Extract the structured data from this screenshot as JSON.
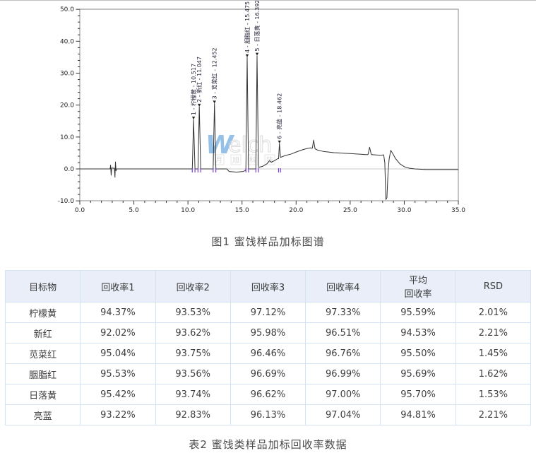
{
  "figure": {
    "caption": "图1 蜜饯样品加标图谱"
  },
  "watermark": {
    "brand_w": "W",
    "brand_rest": "elch",
    "subtext_chars": [
      "月",
      "旭",
      "科",
      "技"
    ]
  },
  "chart_data": {
    "type": "line",
    "title": "",
    "xlabel": "",
    "ylabel": "",
    "xlim": [
      0,
      35
    ],
    "ylim": [
      -10,
      50
    ],
    "x_ticks": [
      0,
      5,
      10,
      15,
      20,
      25,
      30,
      35
    ],
    "x_tick_labels": [
      "0.0",
      "5.0",
      "10.0",
      "15.0",
      "20.0",
      "25.0",
      "30.0",
      "35.0"
    ],
    "y_ticks": [
      50,
      40,
      30,
      20,
      10,
      0,
      -10
    ],
    "y_tick_labels": [
      "50.0",
      "40.0",
      "30.0",
      "20.0",
      "10.0",
      "0.0",
      "-10.0"
    ],
    "grid": "zero-line-only",
    "trace_color": "#333333",
    "marker_color": "#7a3fd4",
    "peaks": [
      {
        "label": "1 - 柠檬黄 - 10.517",
        "time": 10.517,
        "height": 15.5
      },
      {
        "label": "2 - 新红 - 11.047",
        "time": 11.047,
        "height": 19.5
      },
      {
        "label": "3 - 苋菜红 - 12.452",
        "time": 12.452,
        "height": 20.5
      },
      {
        "label": "4 - 胭脂红 - 15.475",
        "time": 15.475,
        "height": 35.0
      },
      {
        "label": "5 - 日落黄 - 16.392",
        "time": 16.392,
        "height": 35.5
      },
      {
        "label": "6 - 亮蓝 - 18.462",
        "time": 18.462,
        "height": 8.0
      }
    ],
    "integration_markers": [
      10.4,
      10.65,
      10.93,
      11.18,
      12.33,
      12.58,
      15.36,
      15.6,
      16.28,
      16.52,
      18.38,
      18.56
    ],
    "trace": [
      [
        0,
        0
      ],
      [
        1,
        0
      ],
      [
        2,
        0
      ],
      [
        2.8,
        0
      ],
      [
        2.85,
        1.2
      ],
      [
        2.9,
        -2.0
      ],
      [
        2.95,
        0.3
      ],
      [
        3.2,
        0.2
      ],
      [
        3.25,
        -2.6
      ],
      [
        3.3,
        2.2
      ],
      [
        3.35,
        -0.6
      ],
      [
        3.4,
        0
      ],
      [
        4,
        0
      ],
      [
        5,
        0
      ],
      [
        6,
        0
      ],
      [
        7,
        0
      ],
      [
        8,
        0
      ],
      [
        9,
        0
      ],
      [
        10,
        0
      ],
      [
        10.3,
        0
      ],
      [
        10.4,
        0
      ],
      [
        10.517,
        15.5
      ],
      [
        10.65,
        0
      ],
      [
        10.8,
        0
      ],
      [
        10.93,
        0
      ],
      [
        11.047,
        19.5
      ],
      [
        11.18,
        0
      ],
      [
        11.5,
        0
      ],
      [
        12.0,
        0
      ],
      [
        12.33,
        0
      ],
      [
        12.452,
        20.5
      ],
      [
        12.58,
        0
      ],
      [
        13.0,
        0
      ],
      [
        13.6,
        0
      ],
      [
        13.8,
        -0.8
      ],
      [
        14.5,
        -1.0
      ],
      [
        15.1,
        -0.8
      ],
      [
        15.3,
        -0.5
      ],
      [
        15.36,
        0
      ],
      [
        15.475,
        35.0
      ],
      [
        15.6,
        0
      ],
      [
        16.0,
        0
      ],
      [
        16.28,
        0
      ],
      [
        16.392,
        35.5
      ],
      [
        16.52,
        0.5
      ],
      [
        16.9,
        0.8
      ],
      [
        17.3,
        1.6
      ],
      [
        17.55,
        2.6
      ],
      [
        17.7,
        2.1
      ],
      [
        18.0,
        2.6
      ],
      [
        18.3,
        3.2
      ],
      [
        18.38,
        3.2
      ],
      [
        18.462,
        8.0
      ],
      [
        18.56,
        3.6
      ],
      [
        19,
        4.2
      ],
      [
        19.5,
        4.6
      ],
      [
        20,
        5.3
      ],
      [
        20.5,
        5.9
      ],
      [
        21,
        6.4
      ],
      [
        21.3,
        6.6
      ],
      [
        21.5,
        6.5
      ],
      [
        21.62,
        9.0
      ],
      [
        21.75,
        6.3
      ],
      [
        22,
        5.9
      ],
      [
        22.5,
        5.5
      ],
      [
        23,
        5.3
      ],
      [
        23.5,
        5.1
      ],
      [
        24,
        5.0
      ],
      [
        24.5,
        4.9
      ],
      [
        25,
        4.8
      ],
      [
        25.5,
        4.7
      ],
      [
        26,
        4.6
      ],
      [
        26.4,
        4.5
      ],
      [
        26.65,
        4.5
      ],
      [
        26.8,
        6.8
      ],
      [
        26.95,
        4.5
      ],
      [
        27.3,
        4.4
      ],
      [
        27.8,
        4.3
      ],
      [
        28.1,
        4.4
      ],
      [
        28.2,
        2.0
      ],
      [
        28.3,
        -9.6
      ],
      [
        28.4,
        -9.0
      ],
      [
        28.5,
        -1.0
      ],
      [
        28.6,
        3.0
      ],
      [
        28.75,
        5.8
      ],
      [
        28.9,
        5.0
      ],
      [
        29.2,
        3.2
      ],
      [
        29.6,
        1.6
      ],
      [
        30,
        0.7
      ],
      [
        30.5,
        0.2
      ],
      [
        31,
        0
      ],
      [
        32,
        -0.2
      ],
      [
        33,
        -0.2
      ],
      [
        34,
        -0.2
      ],
      [
        35,
        -0.2
      ]
    ]
  },
  "table": {
    "caption": "表2 蜜饯类样品加标回收率数据",
    "headers": [
      "目标物",
      "回收率1",
      "回收率2",
      "回收率3",
      "回收率4",
      "平均\n回收率",
      "RSD"
    ],
    "rows": [
      [
        "柠檬黄",
        "94.37%",
        "93.53%",
        "97.12%",
        "97.33%",
        "95.59%",
        "2.01%"
      ],
      [
        "新红",
        "92.02%",
        "93.62%",
        "95.98%",
        "96.51%",
        "94.53%",
        "2.21%"
      ],
      [
        "苋菜红",
        "95.04%",
        "93.75%",
        "96.46%",
        "96.76%",
        "95.50%",
        "1.45%"
      ],
      [
        "胭脂红",
        "95.53%",
        "93.56%",
        "96.69%",
        "96.99%",
        "95.69%",
        "1.62%"
      ],
      [
        "日落黄",
        "95.42%",
        "93.74%",
        "96.62%",
        "97.00%",
        "95.70%",
        "1.53%"
      ],
      [
        "亮蓝",
        "93.22%",
        "92.83%",
        "96.13%",
        "97.04%",
        "94.81%",
        "2.21%"
      ]
    ]
  }
}
